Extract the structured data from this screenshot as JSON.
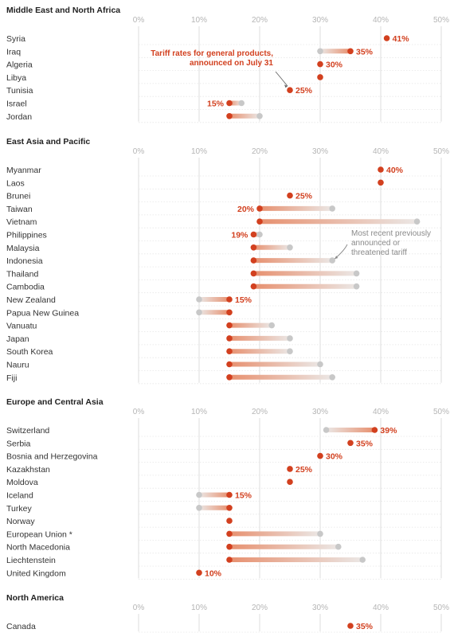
{
  "colors": {
    "new_rate": "#d2401f",
    "prev_rate": "#c8c8c8",
    "label": "#d2401f",
    "grid": "#d6d6d6",
    "row_line": "#e6e6e6",
    "annotation_gray": "#8a8a8a"
  },
  "chart_data": {
    "type": "dumbbell",
    "axis": {
      "ticks": [
        0,
        10,
        20,
        30,
        40,
        50
      ],
      "tick_format": "{v}%",
      "xlim": [
        0,
        50
      ]
    },
    "annotations": {
      "new_rate": "Tariff rates for general products, announced on July 31",
      "new_rate_lines": [
        "Tariff rates for general products,",
        "announced on July 31"
      ],
      "prev_rate": "Most recent previously announced or threatened tariff",
      "prev_rate_lines": [
        "Most recent previously",
        "announced or",
        "threatened tariff"
      ]
    },
    "regions": [
      {
        "name": "Middle East and North Africa",
        "countries": [
          {
            "name": "Syria",
            "new": 41,
            "prev": 41,
            "label": "41%"
          },
          {
            "name": "Iraq",
            "new": 35,
            "prev": 30,
            "label": "35%"
          },
          {
            "name": "Algeria",
            "new": 30,
            "prev": 30,
            "label": "30%"
          },
          {
            "name": "Libya",
            "new": 30,
            "prev": 30,
            "label": ""
          },
          {
            "name": "Tunisia",
            "new": 25,
            "prev": 25,
            "label": "25%"
          },
          {
            "name": "Israel",
            "new": 15,
            "prev": 17,
            "label": "15%"
          },
          {
            "name": "Jordan",
            "new": 15,
            "prev": 20,
            "label": ""
          }
        ]
      },
      {
        "name": "East Asia and Pacific",
        "countries": [
          {
            "name": "Myanmar",
            "new": 40,
            "prev": 40,
            "label": "40%"
          },
          {
            "name": "Laos",
            "new": 40,
            "prev": 40,
            "label": ""
          },
          {
            "name": "Brunei",
            "new": 25,
            "prev": 25,
            "label": "25%"
          },
          {
            "name": "Taiwan",
            "new": 20,
            "prev": 32,
            "label": "20%"
          },
          {
            "name": "Vietnam",
            "new": 20,
            "prev": 46,
            "label": ""
          },
          {
            "name": "Philippines",
            "new": 19,
            "prev": 20,
            "label": "19%"
          },
          {
            "name": "Malaysia",
            "new": 19,
            "prev": 25,
            "label": ""
          },
          {
            "name": "Indonesia",
            "new": 19,
            "prev": 32,
            "label": ""
          },
          {
            "name": "Thailand",
            "new": 19,
            "prev": 36,
            "label": ""
          },
          {
            "name": "Cambodia",
            "new": 19,
            "prev": 36,
            "label": ""
          },
          {
            "name": "New Zealand",
            "new": 15,
            "prev": 10,
            "label": "15%"
          },
          {
            "name": "Papua New Guinea",
            "new": 15,
            "prev": 10,
            "label": ""
          },
          {
            "name": "Vanuatu",
            "new": 15,
            "prev": 22,
            "label": ""
          },
          {
            "name": "Japan",
            "new": 15,
            "prev": 25,
            "label": ""
          },
          {
            "name": "South Korea",
            "new": 15,
            "prev": 25,
            "label": ""
          },
          {
            "name": "Nauru",
            "new": 15,
            "prev": 30,
            "label": ""
          },
          {
            "name": "Fiji",
            "new": 15,
            "prev": 32,
            "label": ""
          }
        ]
      },
      {
        "name": "Europe and Central Asia",
        "countries": [
          {
            "name": "Switzerland",
            "new": 39,
            "prev": 31,
            "label": "39%"
          },
          {
            "name": "Serbia",
            "new": 35,
            "prev": 35,
            "label": "35%"
          },
          {
            "name": "Bosnia and Herzegovina",
            "new": 30,
            "prev": 30,
            "label": "30%"
          },
          {
            "name": "Kazakhstan",
            "new": 25,
            "prev": 25,
            "label": "25%"
          },
          {
            "name": "Moldova",
            "new": 25,
            "prev": 25,
            "label": ""
          },
          {
            "name": "Iceland",
            "new": 15,
            "prev": 10,
            "label": "15%"
          },
          {
            "name": "Turkey",
            "new": 15,
            "prev": 10,
            "label": ""
          },
          {
            "name": "Norway",
            "new": 15,
            "prev": 15,
            "label": ""
          },
          {
            "name": "European Union *",
            "new": 15,
            "prev": 30,
            "label": ""
          },
          {
            "name": "North Macedonia",
            "new": 15,
            "prev": 33,
            "label": ""
          },
          {
            "name": "Liechtenstein",
            "new": 15,
            "prev": 37,
            "label": ""
          },
          {
            "name": "United Kingdom",
            "new": 10,
            "prev": 10,
            "label": "10%"
          }
        ]
      },
      {
        "name": "North America",
        "countries": [
          {
            "name": "Canada",
            "new": 35,
            "prev": 35,
            "label": "35%"
          }
        ]
      }
    ]
  }
}
